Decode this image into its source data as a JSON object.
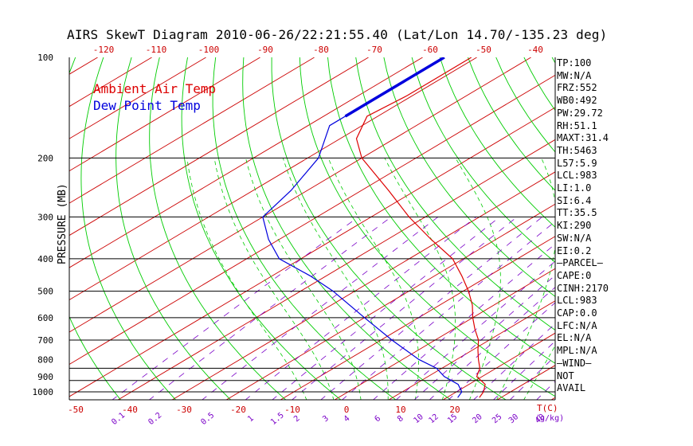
{
  "title": "AIRS SkewT Diagram 2010-06-26/22:21:55.40 (Lat/Lon 14.70/-135.23 deg)",
  "colors": {
    "ambient": "#dd0000",
    "dewpoint": "#0000dd",
    "isotherm": "#cc0000",
    "dry_adiabat": "#00cc00",
    "moist_adiabat": "#00cc00",
    "mixing_ratio": "#7a00c8",
    "isobar": "#000000",
    "tick_label": "#cc0000"
  },
  "legend": {
    "ambient": "Ambient Air Temp",
    "dewpoint": "Dew Point Temp"
  },
  "chart_data": {
    "type": "line",
    "title": "AIRS SkewT Diagram 2010-06-26/22:21:55.40 (Lat/Lon 14.70/-135.23 deg)",
    "ylabel": "PRESSURE (MB)",
    "xlabel": "T(C)",
    "y_scale": "log",
    "ylim": [
      1050,
      100
    ],
    "pressure_ticks": [
      100,
      200,
      300,
      400,
      500,
      600,
      700,
      800,
      900,
      1000
    ],
    "isobar_lines": [
      200,
      300,
      400,
      500,
      600,
      700,
      850,
      925,
      1000
    ],
    "bottom_temp_ticks": [
      -50,
      -40,
      -30,
      -20,
      -10,
      0,
      10,
      20
    ],
    "top_temp_ticks": [
      -120,
      -110,
      -100,
      -90,
      -80,
      -70,
      -60,
      -50,
      -40
    ],
    "mixing_ratio_labels": [
      "0.1",
      "0.2",
      "0.5",
      "1",
      "1.5",
      "2",
      "3",
      "4",
      "6",
      "8",
      "10",
      "12",
      "15",
      "20",
      "25",
      "30",
      "40"
    ],
    "mixing_ratio_unit": "(g/kg)",
    "temp_unit_label": "T(C)",
    "series": [
      {
        "name": "Ambient Air Temp",
        "points": [
          [
            100,
            -81
          ],
          [
            130,
            -81
          ],
          [
            150,
            -82
          ],
          [
            175,
            -77
          ],
          [
            200,
            -70
          ],
          [
            250,
            -55
          ],
          [
            300,
            -43
          ],
          [
            350,
            -32
          ],
          [
            400,
            -22
          ],
          [
            450,
            -15
          ],
          [
            500,
            -9
          ],
          [
            550,
            -4
          ],
          [
            600,
            0
          ],
          [
            650,
            4
          ],
          [
            700,
            8
          ],
          [
            750,
            11
          ],
          [
            800,
            14
          ],
          [
            850,
            17
          ],
          [
            900,
            19
          ],
          [
            950,
            23
          ],
          [
            1000,
            25
          ],
          [
            1040,
            26
          ]
        ]
      },
      {
        "name": "Dew Point Temp",
        "points": [
          [
            100,
            -86
          ],
          [
            160,
            -86
          ],
          [
            200,
            -78
          ],
          [
            250,
            -73
          ],
          [
            300,
            -70
          ],
          [
            350,
            -62
          ],
          [
            400,
            -54
          ],
          [
            450,
            -43
          ],
          [
            500,
            -34
          ],
          [
            600,
            -20
          ],
          [
            700,
            -8
          ],
          [
            800,
            3
          ],
          [
            850,
            9
          ],
          [
            900,
            13
          ],
          [
            950,
            18
          ],
          [
            1000,
            21
          ],
          [
            1040,
            22
          ]
        ]
      }
    ]
  },
  "stats": [
    "TP:100",
    "MW:N/A",
    "FRZ:552",
    "WB0:492",
    "PW:29.72",
    "RH:51.1",
    "MAXT:31.4",
    "TH:5463",
    "L57:5.9",
    "LCL:983",
    "LI:1.0",
    "SI:6.4",
    "TT:35.5",
    "KI:290",
    "SW:N/A",
    "EI:0.2",
    "—PARCEL—",
    "CAPE:0",
    "CINH:2170",
    "LCL:983",
    "CAP:0.0",
    "LFC:N/A",
    "EL:N/A",
    "MPL:N/A",
    "—WIND—",
    " NOT",
    " AVAIL"
  ]
}
